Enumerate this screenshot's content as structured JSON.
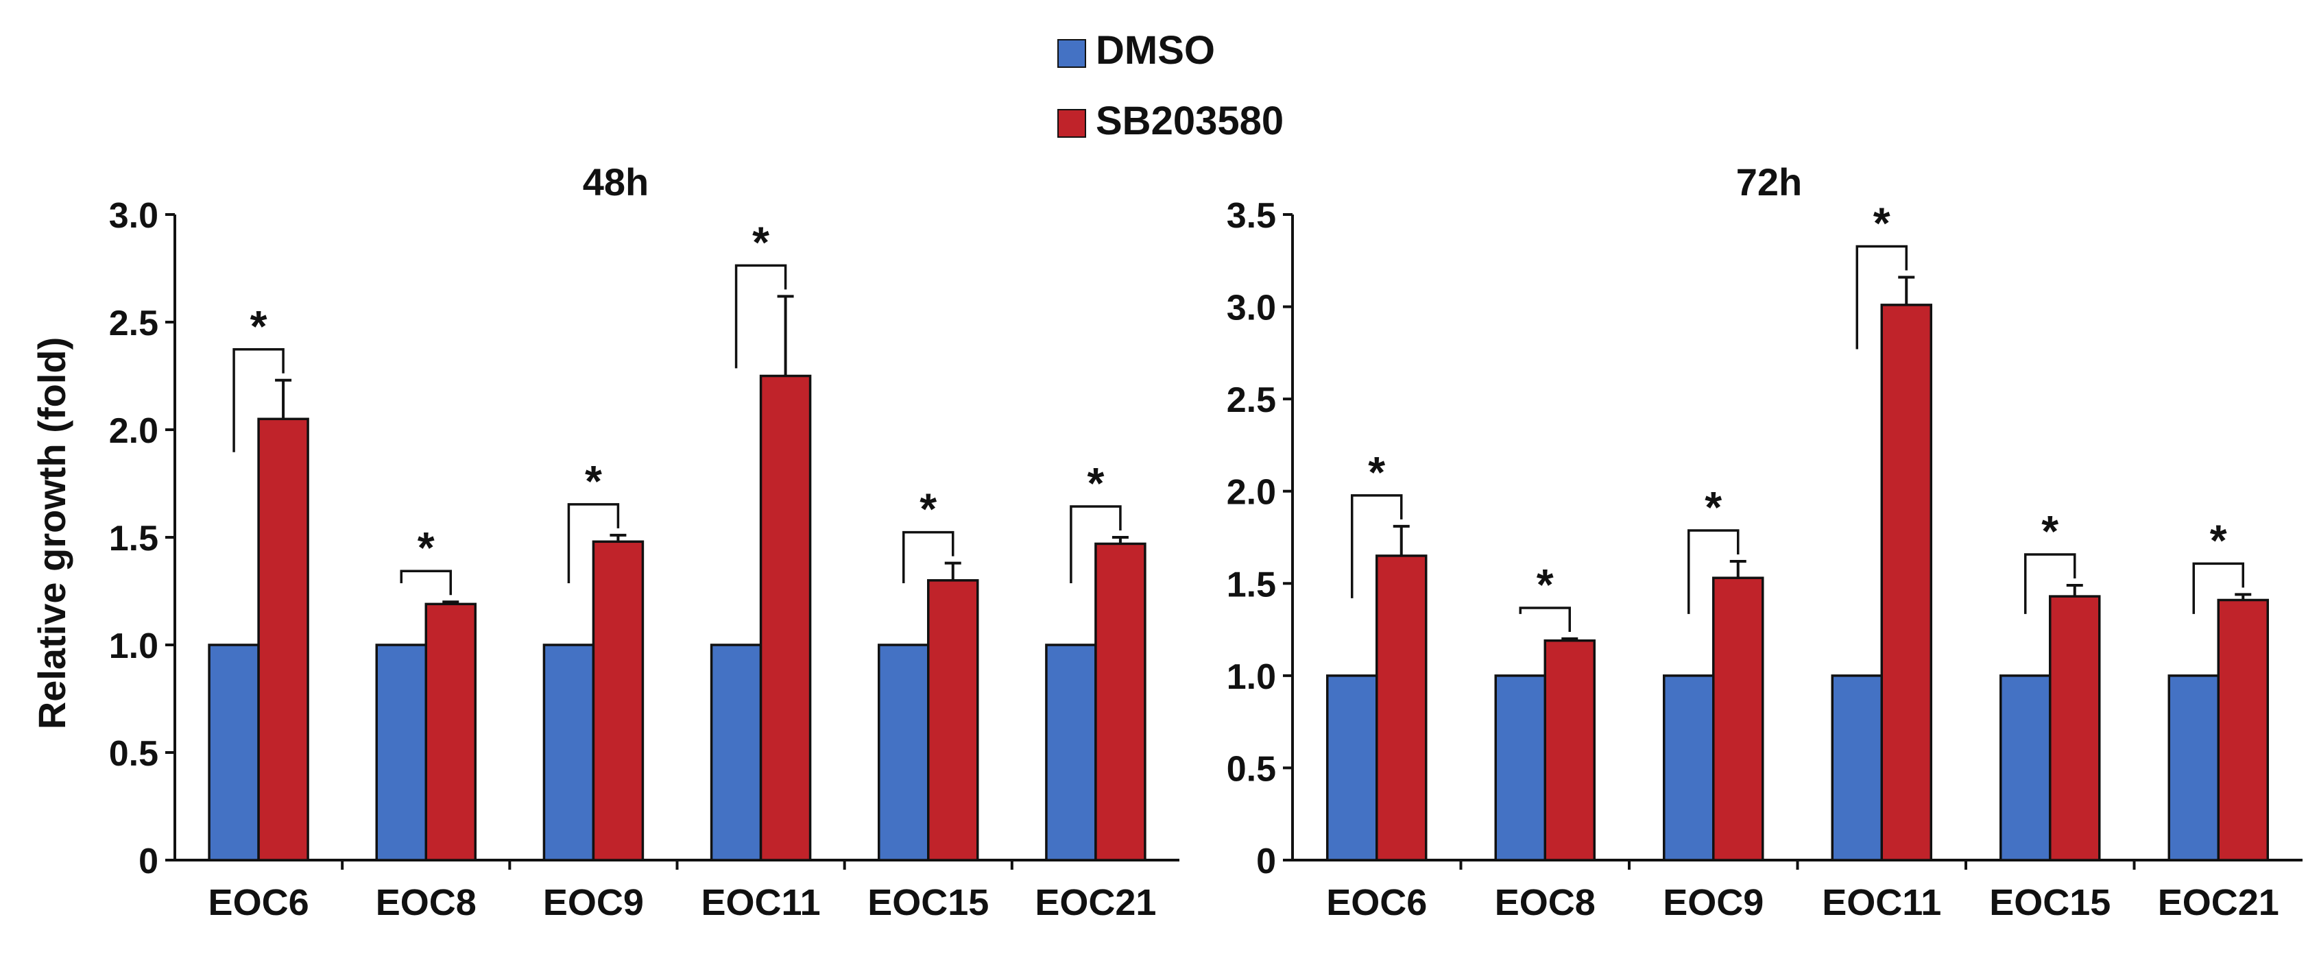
{
  "legend": [
    {
      "label": "DMSO",
      "color": "#4472C4"
    },
    {
      "label": "SB203580",
      "color": "#C0232A"
    }
  ],
  "y_axis_label": "Relative growth (fold)",
  "significance_mark": "*",
  "chart_data": [
    {
      "type": "bar",
      "title": "48h",
      "categories": [
        "EOC6",
        "EOC8",
        "EOC9",
        "EOC11",
        "EOC15",
        "EOC21"
      ],
      "series": [
        {
          "name": "DMSO",
          "values": [
            1.0,
            1.0,
            1.0,
            1.0,
            1.0,
            1.0
          ],
          "errors": [
            0,
            0,
            0,
            0,
            0,
            0
          ]
        },
        {
          "name": "SB203580",
          "values": [
            2.05,
            1.19,
            1.48,
            2.25,
            1.3,
            1.47
          ],
          "errors": [
            0.18,
            0.01,
            0.03,
            0.37,
            0.08,
            0.03
          ]
        }
      ],
      "significant": [
        true,
        true,
        true,
        true,
        true,
        true
      ],
      "ylabel": "Relative growth (fold)",
      "ylim": [
        0,
        3.0
      ],
      "yticks": [
        0,
        0.5,
        1.0,
        1.5,
        2.0,
        2.5,
        3.0
      ],
      "ytick_labels": [
        "0",
        "0.5",
        "1.0",
        "1.5",
        "2.0",
        "2.5",
        "3.0"
      ]
    },
    {
      "type": "bar",
      "title": "72h",
      "categories": [
        "EOC6",
        "EOC8",
        "EOC9",
        "EOC11",
        "EOC15",
        "EOC21"
      ],
      "series": [
        {
          "name": "DMSO",
          "values": [
            1.0,
            1.0,
            1.0,
            1.0,
            1.0,
            1.0
          ],
          "errors": [
            0,
            0,
            0,
            0,
            0,
            0
          ]
        },
        {
          "name": "SB203580",
          "values": [
            1.65,
            1.19,
            1.53,
            3.01,
            1.43,
            1.41
          ],
          "errors": [
            0.16,
            0.01,
            0.09,
            0.15,
            0.06,
            0.03
          ]
        }
      ],
      "significant": [
        true,
        true,
        true,
        true,
        true,
        true
      ],
      "ylim": [
        0,
        3.5
      ],
      "yticks": [
        0,
        0.5,
        1.0,
        1.5,
        2.0,
        2.5,
        3.0,
        3.5
      ],
      "ytick_labels": [
        "0",
        "0.5",
        "1.0",
        "1.5",
        "2.0",
        "2.5",
        "3.0",
        "3.5"
      ]
    }
  ]
}
